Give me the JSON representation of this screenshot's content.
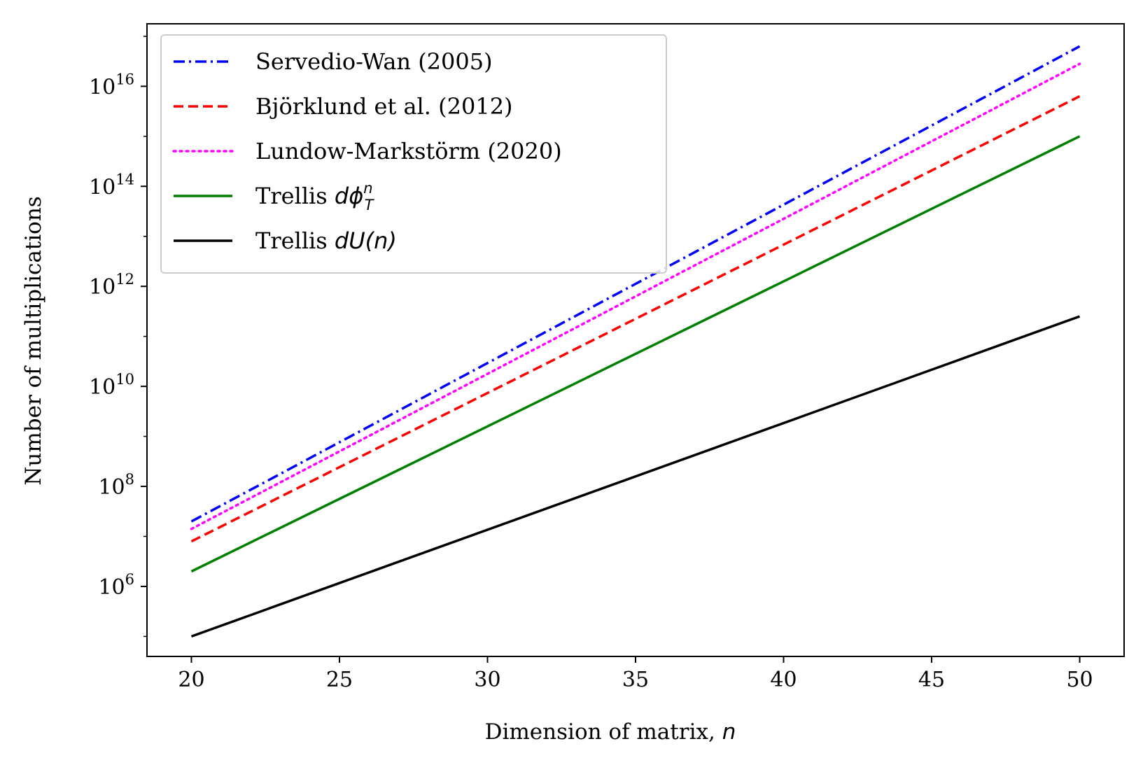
{
  "chart_data": {
    "type": "line",
    "xlabel": "Dimension of matrix,",
    "xlabel_math": "n",
    "ylabel": "Number of multiplications",
    "x_scale": "linear",
    "y_scale": "log",
    "xlim": [
      18.5,
      51.5
    ],
    "ylim_log10": [
      4.6,
      17.25
    ],
    "xticks": [
      20,
      25,
      30,
      35,
      40,
      45,
      50
    ],
    "xtick_labels": [
      "20",
      "25",
      "30",
      "35",
      "40",
      "45",
      "50"
    ],
    "yticks_log10": [
      6,
      8,
      10,
      12,
      14,
      16
    ],
    "ytick_base": "10",
    "ytick_exponents": [
      "6",
      "8",
      "10",
      "12",
      "14",
      "16"
    ],
    "grid": false,
    "legend_position": "upper-left",
    "x": [
      20,
      50
    ],
    "series": [
      {
        "name": "Servedio-Wan (2005)",
        "color": "#0000ff",
        "dash": "dashdot",
        "log10_values": [
          7.3,
          16.8
        ]
      },
      {
        "name": "Björklund et al. (2012)",
        "color": "#ff0000",
        "dash": "dashed",
        "log10_values": [
          6.9,
          15.8
        ]
      },
      {
        "name": "Lundow-Markstörm (2020)",
        "color": "#ff00ff",
        "dash": "dotted",
        "log10_values": [
          7.15,
          16.45
        ]
      },
      {
        "name": "Trellis ",
        "name_math": "dϕ_T^n",
        "color": "#008000",
        "dash": "solid",
        "log10_values": [
          6.3,
          15.0
        ]
      },
      {
        "name": "Trellis ",
        "name_math": "dU(n)",
        "color": "#000000",
        "dash": "solid",
        "log10_values": [
          5.0,
          11.4
        ]
      }
    ]
  }
}
